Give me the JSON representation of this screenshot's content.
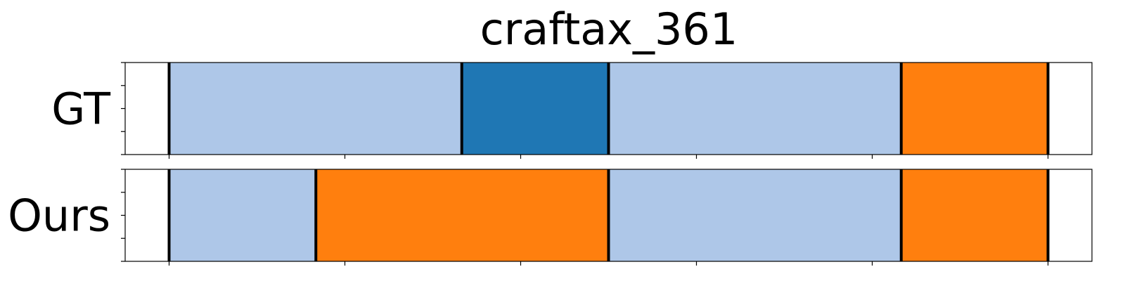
{
  "chart_data": {
    "type": "segmentation",
    "title": "craftax_361",
    "xlim": [
      0,
      11
    ],
    "boundary_color": "#000000",
    "rows": [
      {
        "label": "GT",
        "segments": [
          {
            "start": 0.5,
            "end": 3.83,
            "color": "#aec7e8"
          },
          {
            "start": 3.83,
            "end": 5.5,
            "color": "#1f77b4"
          },
          {
            "start": 5.5,
            "end": 8.83,
            "color": "#aec7e8"
          },
          {
            "start": 8.83,
            "end": 10.5,
            "color": "#ff7f0e"
          }
        ],
        "boundaries": [
          0.5,
          3.83,
          5.5,
          8.83,
          10.5
        ]
      },
      {
        "label": "Ours",
        "segments": [
          {
            "start": 0.5,
            "end": 2.17,
            "color": "#aec7e8"
          },
          {
            "start": 2.17,
            "end": 5.5,
            "color": "#ff7f0e"
          },
          {
            "start": 5.5,
            "end": 8.83,
            "color": "#aec7e8"
          },
          {
            "start": 8.83,
            "end": 10.5,
            "color": "#ff7f0e"
          }
        ],
        "boundaries": [
          0.5,
          2.17,
          5.5,
          8.83,
          10.5
        ]
      }
    ],
    "x_ticks": [
      0.5,
      2.5,
      4.5,
      6.5,
      8.5,
      10.5
    ],
    "y_tick_count": 5
  }
}
